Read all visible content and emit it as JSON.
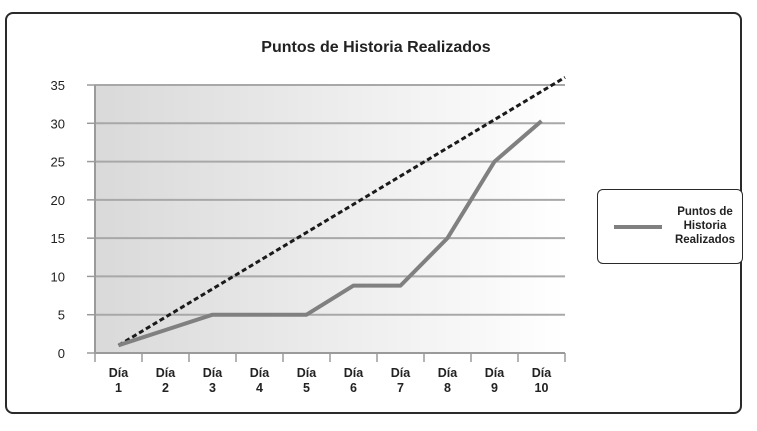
{
  "chart_data": {
    "type": "line",
    "title": "Puntos de Historia Realizados",
    "categories": [
      [
        "Día",
        "1"
      ],
      [
        "Día",
        "2"
      ],
      [
        "Día",
        "3"
      ],
      [
        "Día",
        "4"
      ],
      [
        "Día",
        "5"
      ],
      [
        "Día",
        "6"
      ],
      [
        "Día",
        "7"
      ],
      [
        "Día",
        "8"
      ],
      [
        "Día",
        "9"
      ],
      [
        "Día",
        "10"
      ]
    ],
    "series": [
      {
        "name": "Puntos de Historia Realizados",
        "values": [
          1,
          3,
          5,
          5,
          5,
          8.8,
          8.8,
          15,
          25,
          30.3
        ],
        "color": "#808080"
      }
    ],
    "reference_line": {
      "style": "dashed",
      "color": "#1a1a1a",
      "x": [
        1,
        10.5
      ],
      "y": [
        1,
        36
      ]
    },
    "yticks": [
      "0",
      "5",
      "10",
      "15",
      "20",
      "25",
      "30",
      "35"
    ],
    "ylim": [
      0,
      35
    ],
    "grid": true,
    "legend": {
      "label_lines": [
        "Puntos de",
        "Historia",
        "Realizados"
      ],
      "placement": "right"
    }
  }
}
